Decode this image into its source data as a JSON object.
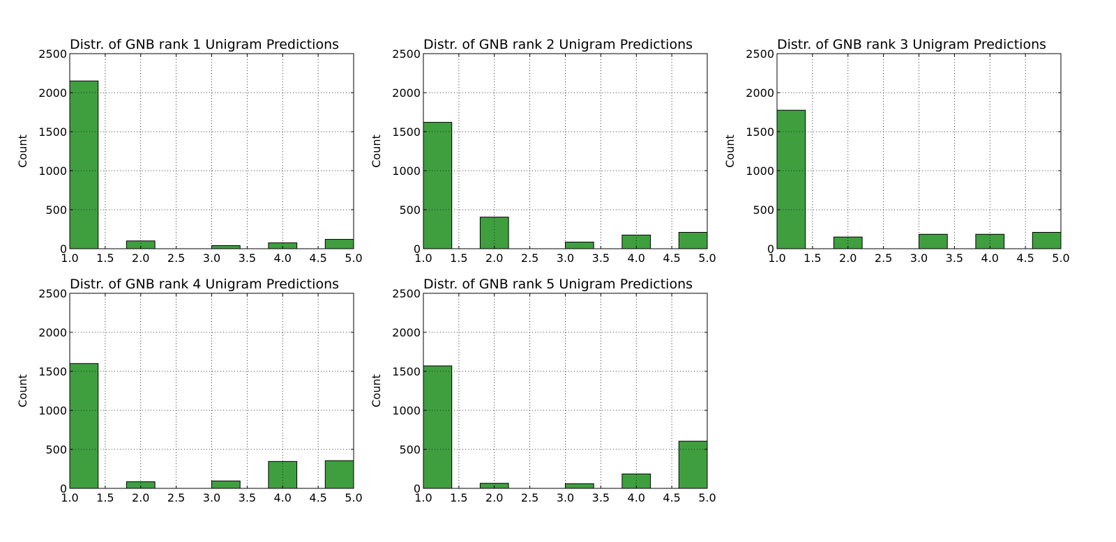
{
  "style": {
    "bar_color": "#3f9f3f",
    "bar_edge": "#000000",
    "grid_color": "#000000",
    "background": "#ffffff"
  },
  "chart_data": [
    {
      "type": "bar",
      "title": "Distr. of GNB rank 1 Unigram Predictions",
      "xlabel": "",
      "ylabel": "Count",
      "xlim": [
        1.0,
        5.0
      ],
      "ylim": [
        0,
        2500
      ],
      "xticks": [
        "1.0",
        "1.5",
        "2.0",
        "2.5",
        "3.0",
        "3.5",
        "4.0",
        "4.5",
        "5.0"
      ],
      "yticks": [
        "0",
        "500",
        "1000",
        "1500",
        "2000",
        "2500"
      ],
      "grid": true,
      "bins": [
        [
          1.0,
          1.4
        ],
        [
          1.8,
          2.2
        ],
        [
          2.6,
          3.0
        ],
        [
          3.0,
          3.4
        ],
        [
          3.8,
          4.2
        ],
        [
          4.6,
          5.0
        ]
      ],
      "values": [
        2150,
        100,
        0,
        40,
        75,
        120
      ]
    },
    {
      "type": "bar",
      "title": "Distr. of GNB rank 2 Unigram Predictions",
      "xlabel": "",
      "ylabel": "Count",
      "xlim": [
        1.0,
        5.0
      ],
      "ylim": [
        0,
        2500
      ],
      "xticks": [
        "1.0",
        "1.5",
        "2.0",
        "2.5",
        "3.0",
        "3.5",
        "4.0",
        "4.5",
        "5.0"
      ],
      "yticks": [
        "0",
        "500",
        "1000",
        "1500",
        "2000",
        "2500"
      ],
      "grid": true,
      "bins": [
        [
          1.0,
          1.4
        ],
        [
          1.8,
          2.2
        ],
        [
          3.0,
          3.4
        ],
        [
          3.8,
          4.2
        ],
        [
          4.6,
          5.0
        ]
      ],
      "values": [
        1620,
        405,
        85,
        175,
        210
      ]
    },
    {
      "type": "bar",
      "title": "Distr. of GNB rank 3 Unigram Predictions",
      "xlabel": "",
      "ylabel": "Count",
      "xlim": [
        1.0,
        5.0
      ],
      "ylim": [
        0,
        2500
      ],
      "xticks": [
        "1.0",
        "1.5",
        "2.0",
        "2.5",
        "3.0",
        "3.5",
        "4.0",
        "4.5",
        "5.0"
      ],
      "yticks": [
        "0",
        "500",
        "1000",
        "1500",
        "2000",
        "2500"
      ],
      "grid": true,
      "bins": [
        [
          1.0,
          1.4
        ],
        [
          1.8,
          2.2
        ],
        [
          3.0,
          3.4
        ],
        [
          3.8,
          4.2
        ],
        [
          4.6,
          5.0
        ]
      ],
      "values": [
        1775,
        150,
        185,
        185,
        210
      ]
    },
    {
      "type": "bar",
      "title": "Distr. of GNB rank 4 Unigram Predictions",
      "xlabel": "",
      "ylabel": "Count",
      "xlim": [
        1.0,
        5.0
      ],
      "ylim": [
        0,
        2500
      ],
      "xticks": [
        "1.0",
        "1.5",
        "2.0",
        "2.5",
        "3.0",
        "3.5",
        "4.0",
        "4.5",
        "5.0"
      ],
      "yticks": [
        "0",
        "500",
        "1000",
        "1500",
        "2000",
        "2500"
      ],
      "grid": true,
      "bins": [
        [
          1.0,
          1.4
        ],
        [
          1.8,
          2.2
        ],
        [
          3.0,
          3.4
        ],
        [
          3.8,
          4.2
        ],
        [
          4.6,
          5.0
        ]
      ],
      "values": [
        1600,
        85,
        95,
        345,
        355
      ]
    },
    {
      "type": "bar",
      "title": "Distr. of GNB rank 5 Unigram Predictions",
      "xlabel": "",
      "ylabel": "Count",
      "xlim": [
        1.0,
        5.0
      ],
      "ylim": [
        0,
        2500
      ],
      "xticks": [
        "1.0",
        "1.5",
        "2.0",
        "2.5",
        "3.0",
        "3.5",
        "4.0",
        "4.5",
        "5.0"
      ],
      "yticks": [
        "0",
        "500",
        "1000",
        "1500",
        "2000",
        "2500"
      ],
      "grid": true,
      "bins": [
        [
          1.0,
          1.4
        ],
        [
          1.8,
          2.2
        ],
        [
          3.0,
          3.4
        ],
        [
          3.8,
          4.2
        ],
        [
          4.6,
          5.0
        ]
      ],
      "values": [
        1570,
        65,
        60,
        185,
        605
      ]
    }
  ]
}
